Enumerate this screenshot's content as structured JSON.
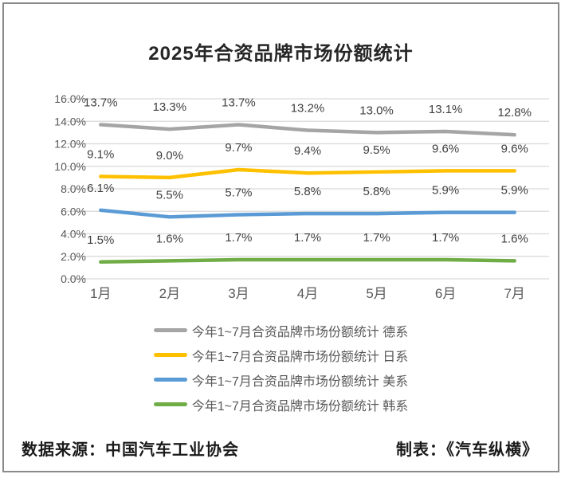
{
  "title": "2025年合资品牌市场份额统计",
  "footer": {
    "source": "数据来源：中国汽车工业协会",
    "producer": "制表：《汽车纵横》"
  },
  "colors": {
    "grid": "#d9d9d9",
    "axis_text": "#595959",
    "data_label_text": "#404040",
    "title_text": "#262626",
    "frame_border": "#8a8a8a"
  },
  "chart_data": {
    "type": "line",
    "title": "2025年合资品牌市场份额统计",
    "categories": [
      "1月",
      "2月",
      "3月",
      "4月",
      "5月",
      "6月",
      "7月"
    ],
    "series": [
      {
        "id": "german",
        "name": "今年1~7月合资品牌市场份额统计 德系",
        "color": "#A5A5A5",
        "values": [
          13.7,
          13.3,
          13.7,
          13.2,
          13.0,
          13.1,
          12.8
        ]
      },
      {
        "id": "japanese",
        "name": "今年1~7月合资品牌市场份额统计 日系",
        "color": "#FFC000",
        "values": [
          9.1,
          9.0,
          9.7,
          9.4,
          9.5,
          9.6,
          9.6
        ]
      },
      {
        "id": "american",
        "name": "今年1~7月合资品牌市场份额统计 美系",
        "color": "#5B9BD5",
        "values": [
          6.1,
          5.5,
          5.7,
          5.8,
          5.8,
          5.9,
          5.9
        ]
      },
      {
        "id": "korean",
        "name": "今年1~7月合资品牌市场份额统计 韩系",
        "color": "#70AD47",
        "values": [
          1.5,
          1.6,
          1.7,
          1.7,
          1.7,
          1.7,
          1.6
        ]
      }
    ],
    "xlabel": "",
    "ylabel": "",
    "ylim": [
      0,
      16
    ],
    "ytick_step": 2,
    "ytick_suffix": "%",
    "grid": true,
    "data_labels": true,
    "legend_position": "bottom"
  }
}
